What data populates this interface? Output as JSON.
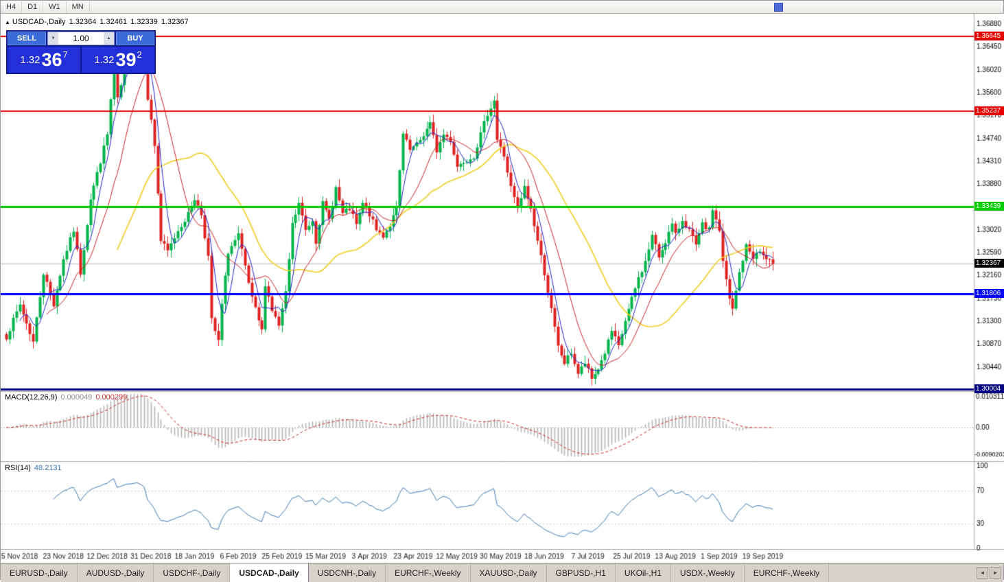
{
  "toolbar": {
    "timeframes": [
      "H4",
      "D1",
      "W1",
      "MN"
    ]
  },
  "icons": {
    "chart_marker": "▲",
    "spin_up": "▲",
    "spin_down": "▼",
    "tab_scroll_left": "◄",
    "tab_scroll_right": "►"
  },
  "chart_header": {
    "symbol": "USDCAD-,Daily",
    "open": "1.32364",
    "high": "1.32461",
    "low": "1.32339",
    "close": "1.32367"
  },
  "trade_panel": {
    "sell_label": "SELL",
    "buy_label": "BUY",
    "volume": "1.00",
    "sell_price": {
      "prefix": "1.32",
      "big": "36",
      "sup": "7"
    },
    "buy_price": {
      "prefix": "1.32",
      "big": "39",
      "sup": "2"
    }
  },
  "price_axis": {
    "ticks": [
      "1.36880",
      "1.36450",
      "1.36020",
      "1.35600",
      "1.35170",
      "1.34740",
      "1.34310",
      "1.33880",
      "1.33450",
      "1.33020",
      "1.32590",
      "1.32160",
      "1.31730",
      "1.31300",
      "1.30870",
      "1.30440"
    ],
    "current_label": "1.32367",
    "current_bg": "#000000"
  },
  "indicators": {
    "macd": {
      "title": "MACD(12,26,9)",
      "value_main": "0.000049",
      "value_signal": "0.000299"
    },
    "rsi": {
      "title": "RSI(14)",
      "value": "48.2131"
    }
  },
  "x_axis_labels": [
    "5 Nov 2018",
    "23 Nov 2018",
    "12 Dec 2018",
    "31 Dec 2018",
    "18 Jan 2019",
    "6 Feb 2019",
    "25 Feb 2019",
    "15 Mar 2019",
    "3 Apr 2019",
    "23 Apr 2019",
    "12 May 2019",
    "30 May 2019",
    "18 Jun 2019",
    "7 Jul 2019",
    "25 Jul 2019",
    "13 Aug 2019",
    "1 Sep 2019",
    "19 Sep 2019"
  ],
  "tabs": [
    {
      "label": "EURUSD-,Daily",
      "active": false
    },
    {
      "label": "AUDUSD-,Daily",
      "active": false
    },
    {
      "label": "USDCHF-,Daily",
      "active": false
    },
    {
      "label": "USDCAD-,Daily",
      "active": true
    },
    {
      "label": "USDCNH-,Daily",
      "active": false
    },
    {
      "label": "EURCHF-,Weekly",
      "active": false
    },
    {
      "label": "XAUUSD-,Daily",
      "active": false
    },
    {
      "label": "GBPUSD-,H1",
      "active": false
    },
    {
      "label": "UKOil-,H1",
      "active": false
    },
    {
      "label": "USDX-,Weekly",
      "active": false
    },
    {
      "label": "EURCHF-,Weekly",
      "active": false
    }
  ],
  "chart_data": {
    "type": "candlestick",
    "title": "USDCAD-,Daily",
    "candle_count": 229,
    "up_color": "#00b44c",
    "down_color": "#e02222",
    "current_price": 1.32367,
    "x_tick_first_index": 4,
    "x_tick_step": 13,
    "price_anchors": [
      [
        0,
        1.31
      ],
      [
        4,
        1.316
      ],
      [
        8,
        1.309
      ],
      [
        11,
        1.322
      ],
      [
        14,
        1.316
      ],
      [
        17,
        1.3245
      ],
      [
        20,
        1.33
      ],
      [
        22,
        1.322
      ],
      [
        25,
        1.336
      ],
      [
        28,
        1.343
      ],
      [
        30,
        1.348
      ],
      [
        32,
        1.361
      ],
      [
        33,
        1.3545
      ],
      [
        36,
        1.3625
      ],
      [
        39,
        1.366
      ],
      [
        41,
        1.364
      ],
      [
        42,
        1.355
      ],
      [
        44,
        1.346
      ],
      [
        46,
        1.328
      ],
      [
        48,
        1.326
      ],
      [
        51,
        1.33
      ],
      [
        54,
        1.333
      ],
      [
        56,
        1.336
      ],
      [
        58,
        1.333
      ],
      [
        60,
        1.325
      ],
      [
        61,
        1.313
      ],
      [
        63,
        1.309
      ],
      [
        64,
        1.316
      ],
      [
        66,
        1.326
      ],
      [
        69,
        1.329
      ],
      [
        71,
        1.323
      ],
      [
        73,
        1.317
      ],
      [
        76,
        1.311
      ],
      [
        77,
        1.32
      ],
      [
        79,
        1.315
      ],
      [
        81,
        1.312
      ],
      [
        83,
        1.318
      ],
      [
        85,
        1.331
      ],
      [
        87,
        1.335
      ],
      [
        89,
        1.33
      ],
      [
        91,
        1.332
      ],
      [
        92,
        1.328
      ],
      [
        94,
        1.335
      ],
      [
        96,
        1.332
      ],
      [
        98,
        1.338
      ],
      [
        100,
        1.333
      ],
      [
        102,
        1.334
      ],
      [
        104,
        1.331
      ],
      [
        106,
        1.335
      ],
      [
        108,
        1.333
      ],
      [
        110,
        1.33
      ],
      [
        112,
        1.329
      ],
      [
        114,
        1.331
      ],
      [
        116,
        1.334
      ],
      [
        118,
        1.348
      ],
      [
        120,
        1.345
      ],
      [
        122,
        1.346
      ],
      [
        124,
        1.348
      ],
      [
        126,
        1.35
      ],
      [
        128,
        1.345
      ],
      [
        130,
        1.348
      ],
      [
        132,
        1.347
      ],
      [
        134,
        1.342
      ],
      [
        136,
        1.343
      ],
      [
        139,
        1.344
      ],
      [
        141,
        1.348
      ],
      [
        143,
        1.352
      ],
      [
        145,
        1.3545
      ],
      [
        146,
        1.347
      ],
      [
        148,
        1.344
      ],
      [
        150,
        1.338
      ],
      [
        152,
        1.334
      ],
      [
        154,
        1.338
      ],
      [
        156,
        1.334
      ],
      [
        158,
        1.328
      ],
      [
        160,
        1.322
      ],
      [
        162,
        1.315
      ],
      [
        164,
        1.308
      ],
      [
        166,
        1.305
      ],
      [
        168,
        1.307
      ],
      [
        170,
        1.303
      ],
      [
        172,
        1.305
      ],
      [
        174,
        1.302
      ],
      [
        176,
        1.304
      ],
      [
        178,
        1.307
      ],
      [
        180,
        1.311
      ],
      [
        182,
        1.308
      ],
      [
        184,
        1.313
      ],
      [
        186,
        1.317
      ],
      [
        188,
        1.321
      ],
      [
        190,
        1.324
      ],
      [
        192,
        1.329
      ],
      [
        194,
        1.325
      ],
      [
        196,
        1.328
      ],
      [
        198,
        1.331
      ],
      [
        199,
        1.329
      ],
      [
        201,
        1.332
      ],
      [
        203,
        1.33
      ],
      [
        205,
        1.327
      ],
      [
        207,
        1.331
      ],
      [
        209,
        1.33
      ],
      [
        210,
        1.334
      ],
      [
        212,
        1.33
      ],
      [
        213,
        1.324
      ],
      [
        215,
        1.317
      ],
      [
        216,
        1.315
      ],
      [
        218,
        1.322
      ],
      [
        220,
        1.327
      ],
      [
        222,
        1.325
      ],
      [
        224,
        1.326
      ],
      [
        226,
        1.3245
      ],
      [
        228,
        1.32367
      ]
    ],
    "moving_averages": [
      {
        "period": 34,
        "color": "#f0cd20",
        "width": 1.6
      },
      {
        "period": 13,
        "color": "#cc2222",
        "width": 1
      },
      {
        "period": 5,
        "color": "#2222cc",
        "width": 1
      }
    ],
    "hlines": [
      {
        "price": 1.36645,
        "label": "1.36645",
        "color": "#e60000",
        "width": 2
      },
      {
        "price": 1.35237,
        "label": "1.35237",
        "color": "#e60000",
        "width": 2
      },
      {
        "price": 1.33439,
        "label": "1.33439",
        "color": "#00cc00",
        "width": 3
      },
      {
        "price": 1.31806,
        "label": "1.31806",
        "color": "#0000ff",
        "width": 3
      },
      {
        "price": 1.30004,
        "label": "1.30004",
        "color": "#000080",
        "width": 3
      }
    ],
    "macd": {
      "fast": 12,
      "slow": 26,
      "signal_period": 9,
      "axis_max": 0.010311,
      "axis_max_label": "0.010311",
      "axis_zero_label": "0.00",
      "axis_min": -0.0090203,
      "axis_min_label": "-0.0090203",
      "hist_color": "#b4b4b4",
      "signal_color": "#cc2222"
    },
    "rsi": {
      "period": 14,
      "color": "#3c78b4",
      "levels": [
        70,
        30
      ],
      "axis_labels": [
        "100",
        "70",
        "30",
        "0"
      ]
    }
  }
}
